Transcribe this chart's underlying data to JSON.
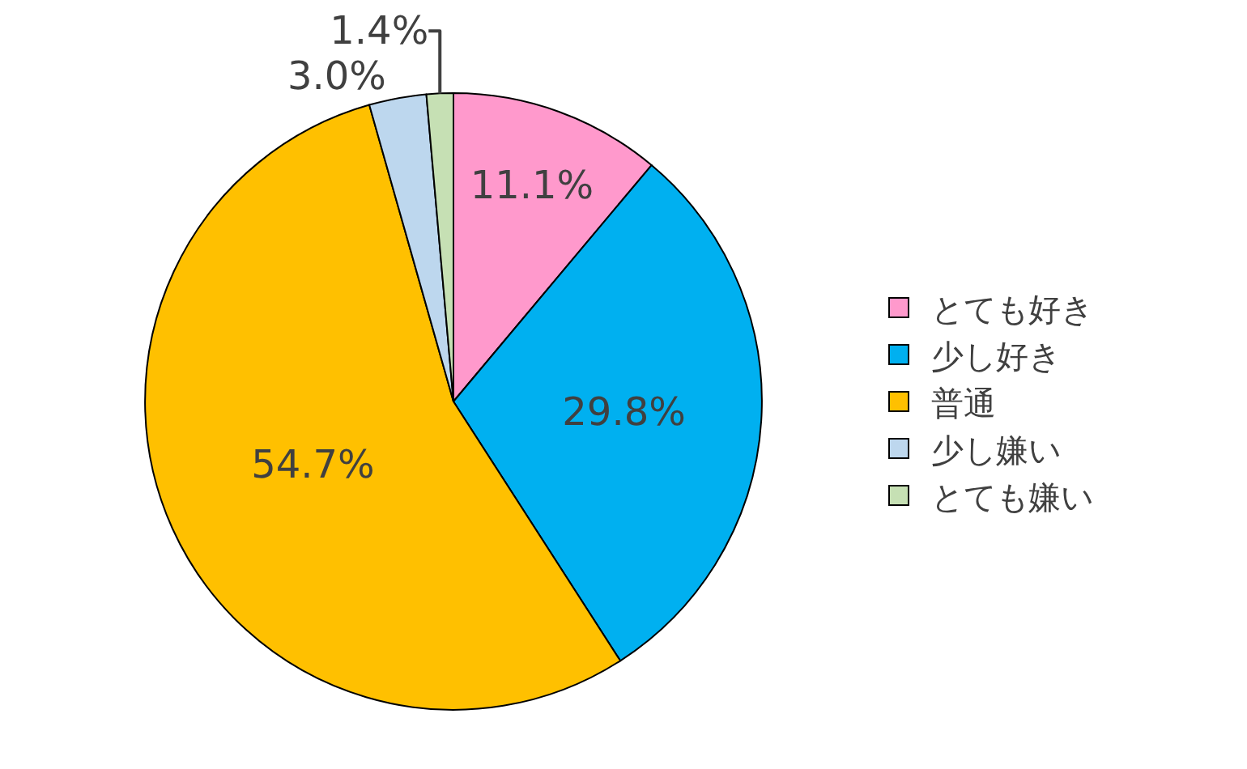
{
  "chart_data": {
    "type": "pie",
    "categories": [
      "とても好き",
      "少し好き",
      "普通",
      "少し嫌い",
      "とても嫌い"
    ],
    "values": [
      11.1,
      29.8,
      54.7,
      3.0,
      1.4
    ],
    "colors": [
      "#ff99cc",
      "#00b0f0",
      "#ffc000",
      "#bdd7ee",
      "#c6e0b4"
    ],
    "value_labels": [
      "11.1%",
      "29.8%",
      "54.7%",
      "3.0%",
      "1.4%"
    ],
    "legend": "right"
  }
}
